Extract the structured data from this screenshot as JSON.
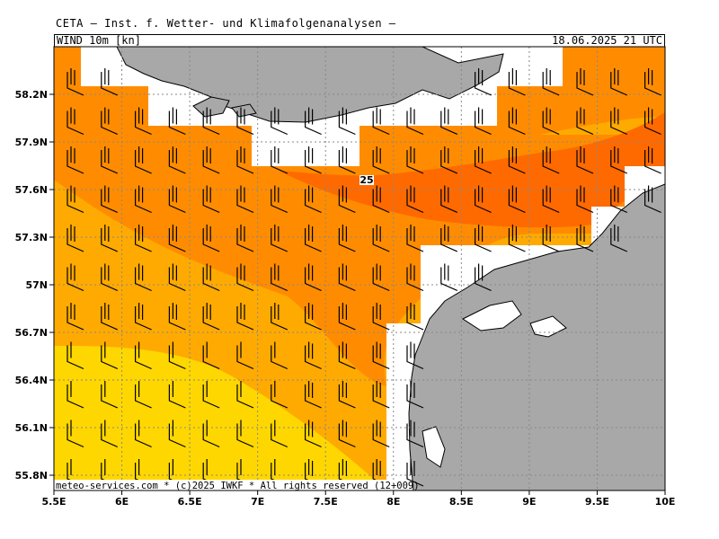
{
  "header": {
    "title": "CETA — Inst. f. Wetter- und Klimafolgenanalysen —",
    "variable": "WIND 10m [kn]",
    "valid_time": "18.06.2025 21 UTC"
  },
  "map": {
    "lon_range": [
      5.5,
      10.0
    ],
    "lat_range": [
      55.7,
      58.5
    ],
    "x_ticks": [
      "5.5E",
      "6E",
      "6.5E",
      "7E",
      "7.5E",
      "8E",
      "8.5E",
      "9E",
      "9.5E",
      "10E"
    ],
    "y_ticks": [
      "58.2N",
      "57.9N",
      "57.6N",
      "57.3N",
      "57N",
      "56.7N",
      "56.4N",
      "56.1N",
      "55.8N"
    ],
    "contour_label": "25",
    "footer": "meteo-services.com * (c)2025 IWKF * All rights reserved (12+009)",
    "colors": {
      "land": "#a8a8a8",
      "band_15": "#ffd700",
      "band_20": "#ffaa00",
      "band_25": "#ff8c00",
      "band_30": "#ff6a00",
      "barb": "#000000",
      "grid": "#888888"
    }
  }
}
